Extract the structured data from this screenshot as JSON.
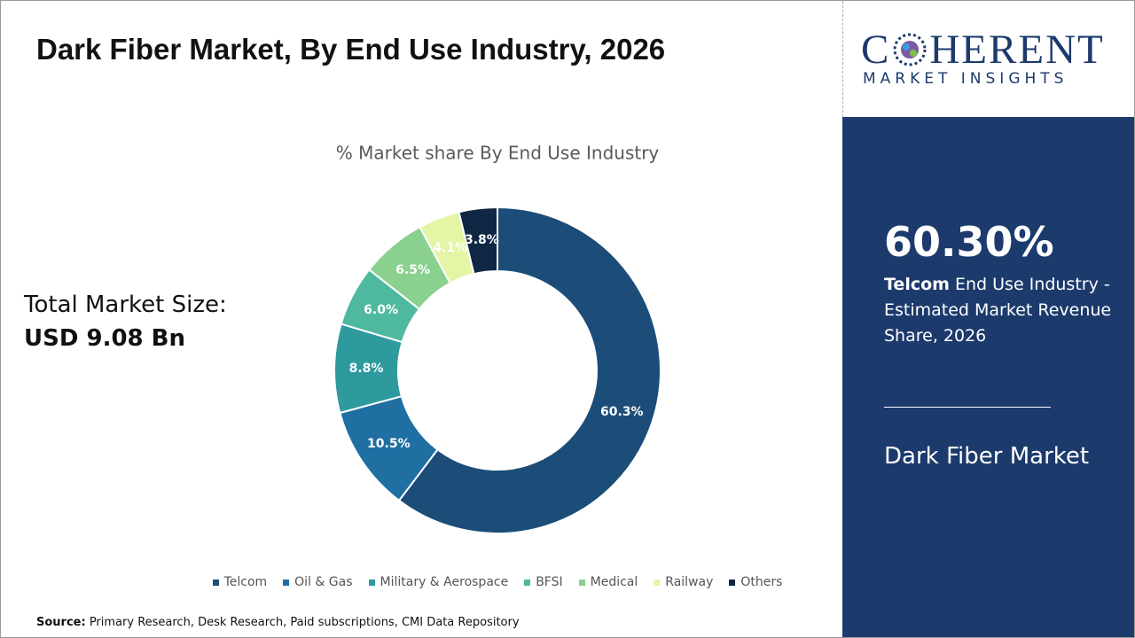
{
  "header": {
    "title": "Dark Fiber Market, By End Use Industry, 2026"
  },
  "market_size": {
    "label": "Total Market Size:",
    "value": "USD 9.08 Bn"
  },
  "logo": {
    "left": "C",
    "right": "HERENT",
    "tagline": "MARKET INSIGHTS"
  },
  "highlight": {
    "value": "60.30%",
    "segment": "Telcom",
    "description": " End Use Industry - Estimated Market Revenue Share, 2026",
    "market": "Dark Fiber Market"
  },
  "source": {
    "label": "Source:",
    "text": " Primary Research, Desk Research, Paid subscriptions, CMI Data Repository"
  },
  "chart_data": {
    "type": "donut",
    "title": "% Market share By End Use Industry",
    "categories": [
      "Telcom",
      "Oil & Gas",
      "Military & Aerospace",
      "BFSI",
      "Medical",
      "Railway",
      "Others"
    ],
    "values": [
      60.3,
      10.5,
      8.8,
      6.0,
      6.5,
      4.1,
      3.8
    ],
    "value_labels": [
      "60.3%",
      "10.5%",
      "8.8%",
      "6.0%",
      "6.5%",
      "4.1%",
      "3.8%"
    ],
    "colors": [
      "#1b4d78",
      "#1f6fa3",
      "#2e9a9e",
      "#4fb9a0",
      "#8ad08e",
      "#e4f5a6",
      "#0f2742"
    ],
    "legend": "bottom"
  }
}
